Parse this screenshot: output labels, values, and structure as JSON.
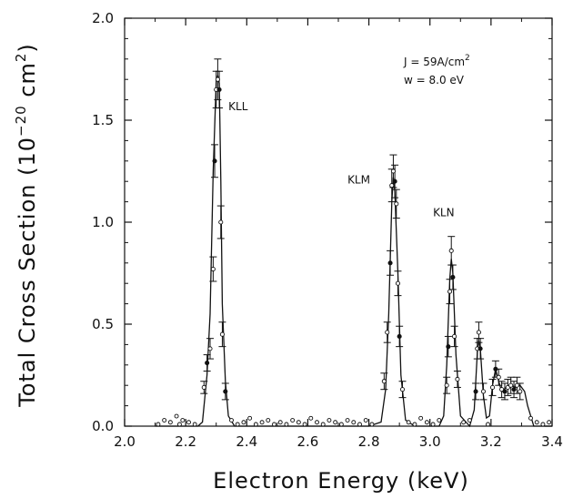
{
  "chart_data": {
    "type": "line",
    "xlabel": "Electron Energy (keV)",
    "ylabel_main": "Total Cross Section (10",
    "ylabel_exp1": "−20",
    "ylabel_mid": " cm",
    "ylabel_exp2": "2",
    "ylabel_end": ")",
    "xlim": [
      2.0,
      3.4
    ],
    "ylim": [
      0.0,
      2.0
    ],
    "xticks": [
      "2.0",
      "2.2",
      "2.4",
      "2.6",
      "2.8",
      "3.0",
      "3.2",
      "3.4"
    ],
    "yticks": [
      "0.0",
      "0.5",
      "1.0",
      "1.5",
      "2.0"
    ],
    "grid": false,
    "legend": "none",
    "peak_labels": [
      {
        "text": "KLL",
        "x": 2.34,
        "y": 1.55
      },
      {
        "text": "KLM",
        "x": 2.73,
        "y": 1.19
      },
      {
        "text": "KLN",
        "x": 3.01,
        "y": 1.03
      }
    ],
    "conditions": {
      "line1": "J = 59A/cm",
      "line1_sup": "2",
      "line2": "w = 8.0 eV"
    },
    "series": [
      {
        "kind": "fit-curve",
        "x": [
          2.1,
          2.24,
          2.255,
          2.27,
          2.28,
          2.29,
          2.3,
          2.305,
          2.31,
          2.315,
          2.32,
          2.33,
          2.34,
          2.36,
          2.5,
          2.8,
          2.84,
          2.855,
          2.865,
          2.875,
          2.88,
          2.885,
          2.895,
          2.905,
          2.92,
          2.95,
          3.03,
          3.045,
          3.055,
          3.065,
          3.07,
          3.075,
          3.085,
          3.1,
          3.13,
          3.145,
          3.155,
          3.16,
          3.165,
          3.175,
          3.185,
          3.195,
          3.205,
          3.215,
          3.225,
          3.235,
          3.25,
          3.265,
          3.28,
          3.295,
          3.31,
          3.32,
          3.34,
          3.4
        ],
        "y": [
          0.0,
          0.0,
          0.02,
          0.25,
          0.55,
          1.25,
          1.69,
          1.72,
          1.68,
          1.2,
          0.6,
          0.22,
          0.05,
          0.0,
          0.0,
          0.0,
          0.02,
          0.18,
          0.55,
          1.1,
          1.22,
          1.15,
          0.75,
          0.25,
          0.03,
          0.0,
          0.0,
          0.05,
          0.3,
          0.72,
          0.82,
          0.75,
          0.35,
          0.05,
          0.0,
          0.08,
          0.36,
          0.42,
          0.38,
          0.15,
          0.04,
          0.05,
          0.2,
          0.28,
          0.22,
          0.17,
          0.19,
          0.2,
          0.19,
          0.2,
          0.17,
          0.1,
          0.0,
          0.0
        ]
      },
      {
        "kind": "points-with-errors",
        "x": [
          2.26,
          2.27,
          2.28,
          2.29,
          2.295,
          2.3,
          2.305,
          2.31,
          2.315,
          2.32,
          2.33,
          2.85,
          2.86,
          2.87,
          2.875,
          2.88,
          2.885,
          2.89,
          2.895,
          2.9,
          2.91,
          3.055,
          3.06,
          3.065,
          3.07,
          3.075,
          3.08,
          3.09,
          3.15,
          3.155,
          3.16,
          3.165,
          3.175,
          3.205,
          3.215,
          3.225,
          3.235,
          3.245,
          3.255,
          3.265,
          3.275,
          3.285,
          3.295
        ],
        "y": [
          0.19,
          0.31,
          0.38,
          0.77,
          1.3,
          1.65,
          1.7,
          1.65,
          1.0,
          0.45,
          0.17,
          0.22,
          0.46,
          0.8,
          1.18,
          1.25,
          1.2,
          1.09,
          0.7,
          0.44,
          0.18,
          0.2,
          0.39,
          0.66,
          0.86,
          0.73,
          0.44,
          0.23,
          0.17,
          0.38,
          0.46,
          0.38,
          0.17,
          0.19,
          0.28,
          0.24,
          0.18,
          0.17,
          0.19,
          0.2,
          0.18,
          0.2,
          0.17
        ],
        "err": [
          0.03,
          0.04,
          0.05,
          0.06,
          0.08,
          0.09,
          0.1,
          0.09,
          0.08,
          0.06,
          0.04,
          0.04,
          0.05,
          0.06,
          0.08,
          0.08,
          0.08,
          0.07,
          0.06,
          0.05,
          0.04,
          0.04,
          0.05,
          0.06,
          0.07,
          0.06,
          0.05,
          0.04,
          0.04,
          0.05,
          0.05,
          0.05,
          0.04,
          0.04,
          0.04,
          0.04,
          0.04,
          0.04,
          0.04,
          0.04,
          0.04,
          0.04,
          0.04
        ]
      },
      {
        "kind": "baseline-points",
        "x": [
          2.11,
          2.13,
          2.15,
          2.17,
          2.18,
          2.19,
          2.21,
          2.23,
          2.35,
          2.37,
          2.39,
          2.41,
          2.43,
          2.45,
          2.47,
          2.49,
          2.51,
          2.53,
          2.55,
          2.57,
          2.59,
          2.61,
          2.63,
          2.65,
          2.67,
          2.69,
          2.71,
          2.73,
          2.75,
          2.77,
          2.79,
          2.81,
          2.93,
          2.95,
          2.97,
          2.99,
          3.01,
          3.03,
          3.11,
          3.13,
          3.19,
          3.33,
          3.35,
          3.37,
          3.39
        ],
        "y": [
          0.0,
          0.02,
          0.01,
          0.04,
          0.0,
          0.02,
          0.01,
          0.0,
          0.02,
          0.0,
          0.01,
          0.03,
          0.0,
          0.01,
          0.02,
          0.0,
          0.01,
          0.0,
          0.02,
          0.01,
          0.0,
          0.03,
          0.01,
          0.0,
          0.02,
          0.01,
          0.0,
          0.02,
          0.01,
          0.0,
          0.02,
          0.0,
          0.01,
          0.0,
          0.03,
          0.01,
          0.0,
          0.02,
          0.01,
          0.02,
          0.0,
          0.03,
          0.01,
          0.0,
          0.01
        ]
      }
    ]
  }
}
